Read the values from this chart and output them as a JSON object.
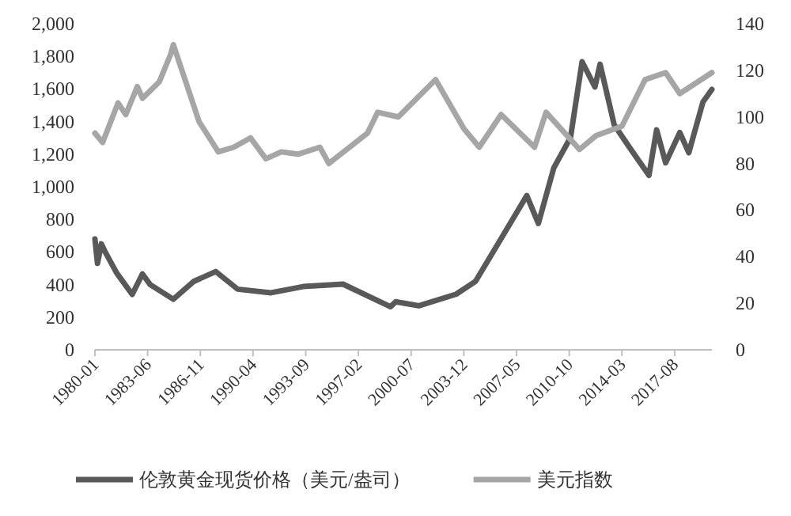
{
  "chart_data": {
    "type": "line",
    "x": [
      "1980-01",
      "1980-03",
      "1980-06",
      "1980-09",
      "1981-06",
      "1982-06",
      "1983-02",
      "1983-08",
      "1985-02",
      "1986-06",
      "1987-11",
      "1989-04",
      "1991-06",
      "1993-07",
      "1996-02",
      "1999-03",
      "1999-07",
      "2001-01",
      "2003-06",
      "2004-09",
      "2006-05",
      "2008-01",
      "2008-10",
      "2009-10",
      "2010-11",
      "2011-08",
      "2012-06",
      "2012-10",
      "2013-09",
      "2014-09",
      "2015-12",
      "2016-06",
      "2017-01",
      "2017-12",
      "2018-07",
      "2019-06",
      "2020-01"
    ],
    "xlim": [
      "1980-01",
      "2020-01"
    ],
    "xticks": [
      "1980-01",
      "1983-06",
      "1986-11",
      "1990-04",
      "1993-09",
      "1997-02",
      "2000-07",
      "2003-12",
      "2007-05",
      "2010-10",
      "2014-03",
      "2017-08"
    ],
    "ylim": [
      0,
      2000
    ],
    "yticks": [
      {
        "value": 0,
        "label": "0"
      },
      {
        "value": 200,
        "label": "200"
      },
      {
        "value": 400,
        "label": "400"
      },
      {
        "value": 600,
        "label": "600"
      },
      {
        "value": 800,
        "label": "800"
      },
      {
        "value": 1000,
        "label": "1,000"
      },
      {
        "value": 1200,
        "label": "1,200"
      },
      {
        "value": 1400,
        "label": "1,400"
      },
      {
        "value": 1600,
        "label": "1,600"
      },
      {
        "value": 1800,
        "label": "1,800"
      },
      {
        "value": 2000,
        "label": "2,000"
      }
    ],
    "y2lim": [
      0,
      140
    ],
    "y2ticks": [
      0,
      20,
      40,
      60,
      80,
      100,
      120,
      140
    ],
    "grid": false,
    "legend": "bottom",
    "line_style": "solid",
    "series": [
      {
        "name": "伦敦黄金现货价格（美元/盎司）",
        "color": "#595959",
        "values": [
          680,
          530,
          650,
          600,
          470,
          340,
          465,
          400,
          310,
          420,
          480,
          372,
          350,
          388,
          403,
          264,
          295,
          270,
          341,
          419,
          682,
          946,
          775,
          1116,
          1302,
          1767,
          1612,
          1752,
          1380,
          1240,
          1070,
          1349,
          1147,
          1333,
          1209,
          1519,
          1597
        ]
      },
      {
        "name": "美元指数",
        "color": "#a6a6a6",
        "axis": "y2",
        "x": [
          "1980-01",
          "1980-07",
          "1981-07",
          "1982-01",
          "1982-10",
          "1983-02",
          "1984-03",
          "1984-12",
          "1985-02",
          "1986-10",
          "1988-01",
          "1989-01",
          "1990-02",
          "1991-02",
          "1992-02",
          "1993-03",
          "1994-08",
          "1995-03",
          "1997-09",
          "1998-05",
          "1999-09",
          "2002-02",
          "2003-12",
          "2004-12",
          "2006-05",
          "2008-07",
          "2009-04",
          "2011-06",
          "2012-07",
          "2014-03",
          "2015-09",
          "2017-01",
          "2017-12",
          "2020-01"
        ],
        "values": [
          93,
          89,
          106,
          101,
          113,
          108,
          115,
          127,
          131,
          98,
          85,
          87,
          91,
          82,
          85,
          84,
          87,
          80,
          93,
          102,
          100,
          116,
          95,
          87,
          101,
          87,
          102,
          86,
          92,
          96,
          116,
          119,
          110,
          119
        ]
      }
    ]
  }
}
